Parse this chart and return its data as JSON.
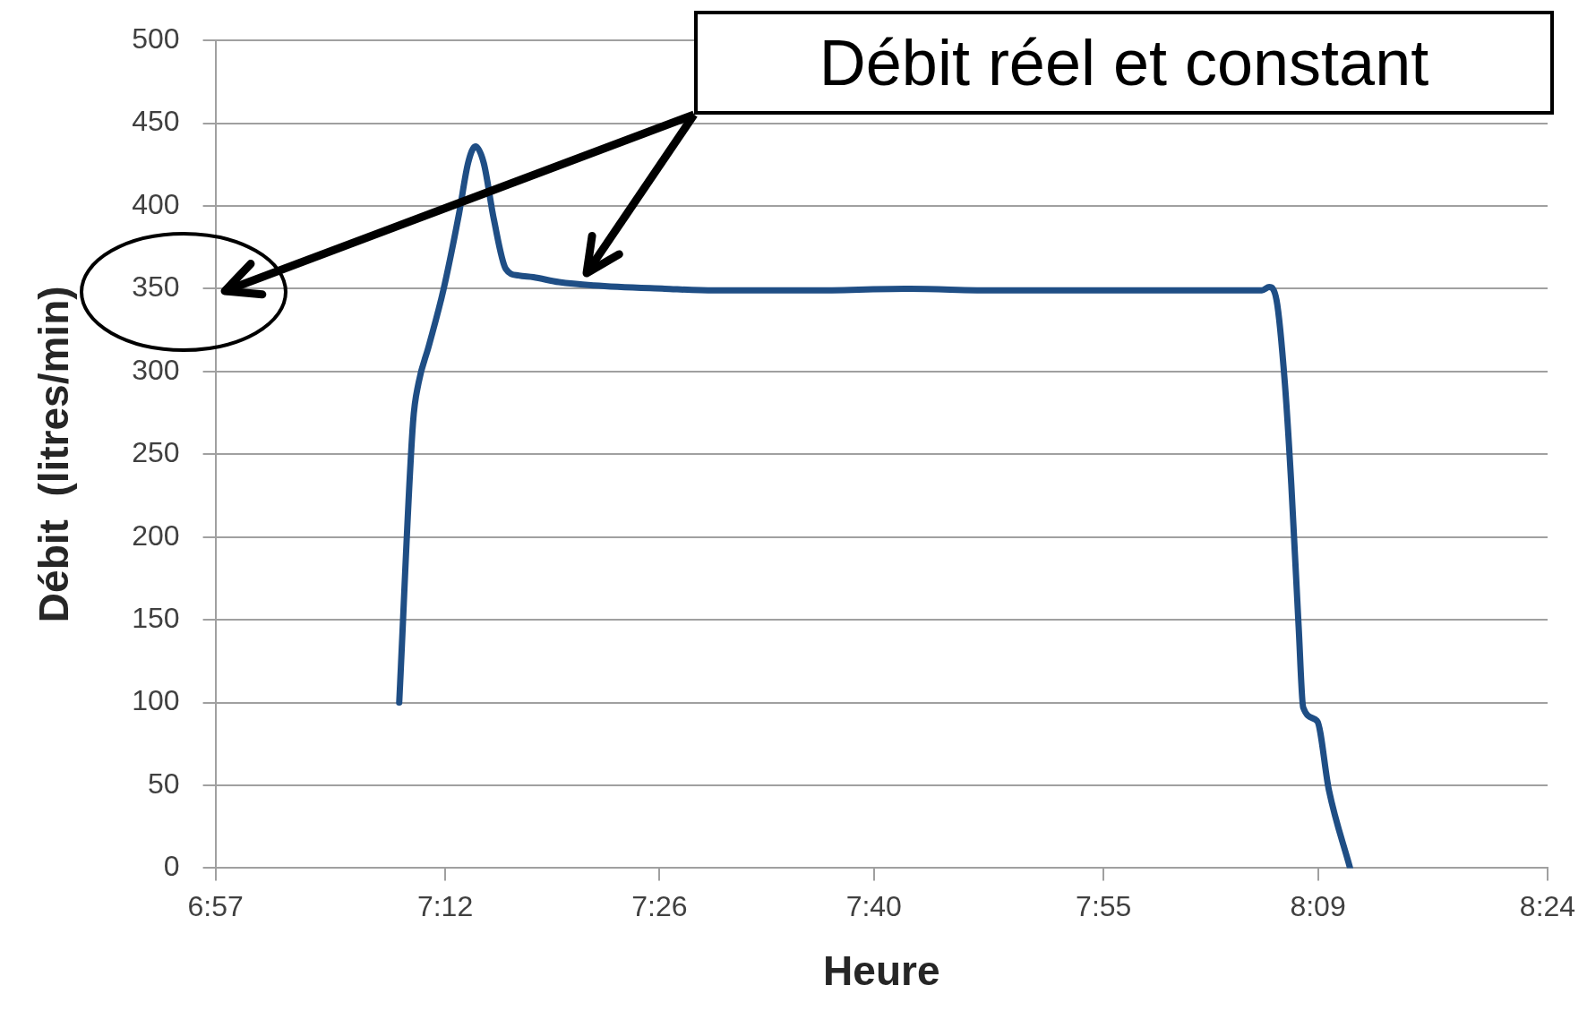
{
  "chart_data": {
    "type": "line",
    "xlabel": "Heure",
    "ylabel": "Débit  (litres/min)",
    "x": [
      7.15,
      7.165,
      7.171,
      7.182,
      7.198,
      7.215,
      7.225,
      7.233,
      7.242,
      7.253,
      7.266,
      7.28,
      7.296,
      7.324,
      7.362,
      7.439,
      7.493,
      7.6,
      7.7,
      7.8,
      7.9,
      8.0,
      8.089,
      8.097,
      8.105,
      8.114,
      8.121,
      8.129,
      8.134,
      8.149,
      8.162,
      8.185
    ],
    "series": [
      {
        "color": "#1f4e85",
        "values": [
          100,
          269,
          293,
          315,
          349,
          395,
          426,
          436,
          426,
          392,
          362,
          358,
          357,
          354,
          352,
          350,
          349,
          349,
          350,
          349,
          349,
          349,
          349,
          351,
          343,
          293,
          232,
          146,
          97,
          89,
          47,
          0
        ]
      }
    ],
    "xlim": [
      6.95,
      8.4
    ],
    "xticks": [
      {
        "value": 6.95,
        "label": "6:57"
      },
      {
        "value": 7.2,
        "label": "7:12"
      },
      {
        "value": 7.4333,
        "label": "7:26"
      },
      {
        "value": 7.6667,
        "label": "7:40"
      },
      {
        "value": 7.9167,
        "label": "7:55"
      },
      {
        "value": 8.15,
        "label": "8:09"
      },
      {
        "value": 8.4,
        "label": "8:24"
      }
    ],
    "ylim": [
      0,
      500
    ],
    "yticks": [
      0,
      50,
      100,
      150,
      200,
      250,
      300,
      350,
      400,
      450,
      500
    ],
    "grid": "y",
    "legend": false,
    "marker": "none",
    "line_style": "solid",
    "annotations": [
      "Débit réel et constant"
    ]
  }
}
